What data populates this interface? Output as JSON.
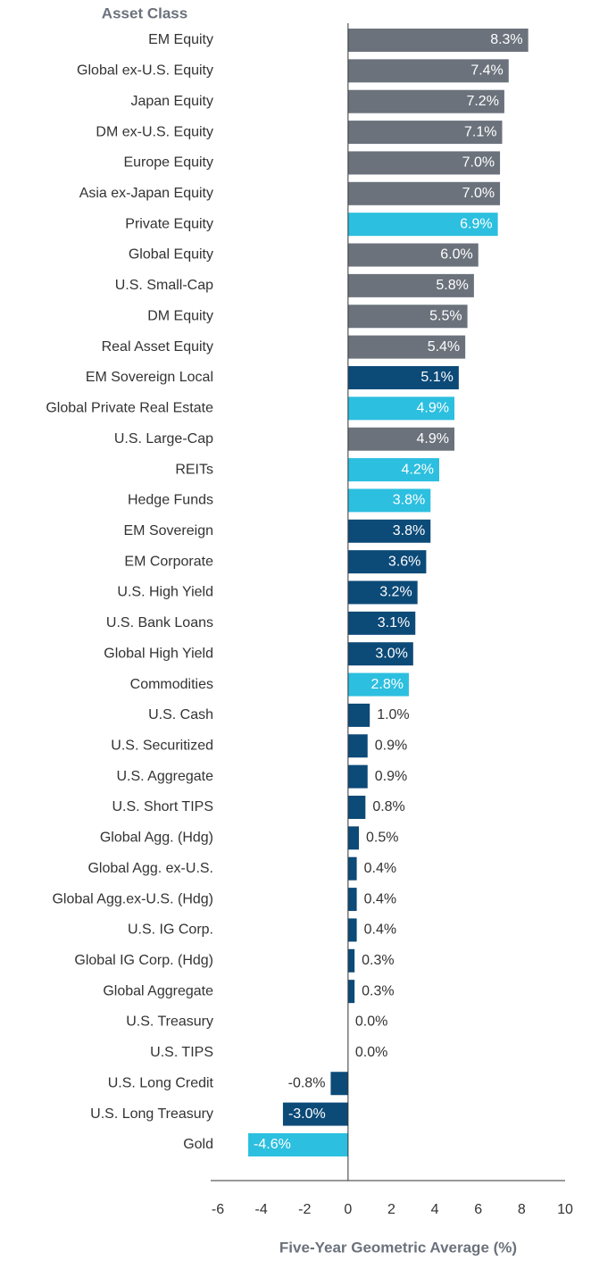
{
  "chart_data": {
    "type": "hbar",
    "y_axis_label": "Asset Class",
    "x_axis_label": "Five-Year Geometric Average (%)",
    "categories": [
      "EM Equity",
      "Global ex-U.S. Equity",
      "Japan Equity",
      "DM ex-U.S. Equity",
      "Europe Equity",
      "Asia ex-Japan Equity",
      "Private Equity",
      "Global Equity",
      "U.S. Small-Cap",
      "DM Equity",
      "Real Asset Equity",
      "EM Sovereign Local",
      "Global Private Real Estate",
      "U.S. Large-Cap",
      "REITs",
      "Hedge Funds",
      "EM Sovereign",
      "EM Corporate",
      "U.S. High Yield",
      "U.S. Bank Loans",
      "Global High Yield",
      "Commodities",
      "U.S. Cash",
      "U.S. Securitized",
      "U.S. Aggregate",
      "U.S. Short TIPS",
      "Global Agg. (Hdg)",
      "Global Agg. ex-U.S.",
      "Global Agg.ex-U.S. (Hdg)",
      "U.S. IG Corp.",
      "Global IG Corp. (Hdg)",
      "Global Aggregate",
      "U.S. Treasury",
      "U.S. TIPS",
      "U.S. Long Credit",
      "U.S. Long Treasury",
      "Gold"
    ],
    "values": [
      8.3,
      7.4,
      7.2,
      7.1,
      7.0,
      7.0,
      6.9,
      6.0,
      5.8,
      5.5,
      5.4,
      5.1,
      4.9,
      4.9,
      4.2,
      3.8,
      3.8,
      3.6,
      3.2,
      3.1,
      3.0,
      2.8,
      1.0,
      0.9,
      0.9,
      0.8,
      0.5,
      0.4,
      0.4,
      0.4,
      0.3,
      0.3,
      0.0,
      0.0,
      -0.8,
      -3.0,
      -4.6
    ],
    "value_labels": [
      "8.3%",
      "7.4%",
      "7.2%",
      "7.1%",
      "7.0%",
      "7.0%",
      "6.9%",
      "6.0%",
      "5.8%",
      "5.5%",
      "5.4%",
      "5.1%",
      "4.9%",
      "4.9%",
      "4.2%",
      "3.8%",
      "3.8%",
      "3.6%",
      "3.2%",
      "3.1%",
      "3.0%",
      "2.8%",
      "1.0%",
      "0.9%",
      "0.9%",
      "0.8%",
      "0.5%",
      "0.4%",
      "0.4%",
      "0.4%",
      "0.3%",
      "0.3%",
      "0.0%",
      "0.0%",
      "-0.8%",
      "-3.0%",
      "-4.6%"
    ],
    "colors": [
      "#6b727c",
      "#6b727c",
      "#6b727c",
      "#6b727c",
      "#6b727c",
      "#6b727c",
      "#2cbfdf",
      "#6b727c",
      "#6b727c",
      "#6b727c",
      "#6b727c",
      "#0c4a78",
      "#2cbfdf",
      "#6b727c",
      "#2cbfdf",
      "#2cbfdf",
      "#0c4a78",
      "#0c4a78",
      "#0c4a78",
      "#0c4a78",
      "#0c4a78",
      "#2cbfdf",
      "#0c4a78",
      "#0c4a78",
      "#0c4a78",
      "#0c4a78",
      "#0c4a78",
      "#0c4a78",
      "#0c4a78",
      "#0c4a78",
      "#0c4a78",
      "#0c4a78",
      "#0c4a78",
      "#0c4a78",
      "#0c4a78",
      "#0c4a78",
      "#2cbfdf"
    ],
    "xlim": [
      -6,
      10
    ],
    "xticks": [
      -6,
      -4,
      -2,
      0,
      2,
      4,
      6,
      8,
      10
    ]
  }
}
